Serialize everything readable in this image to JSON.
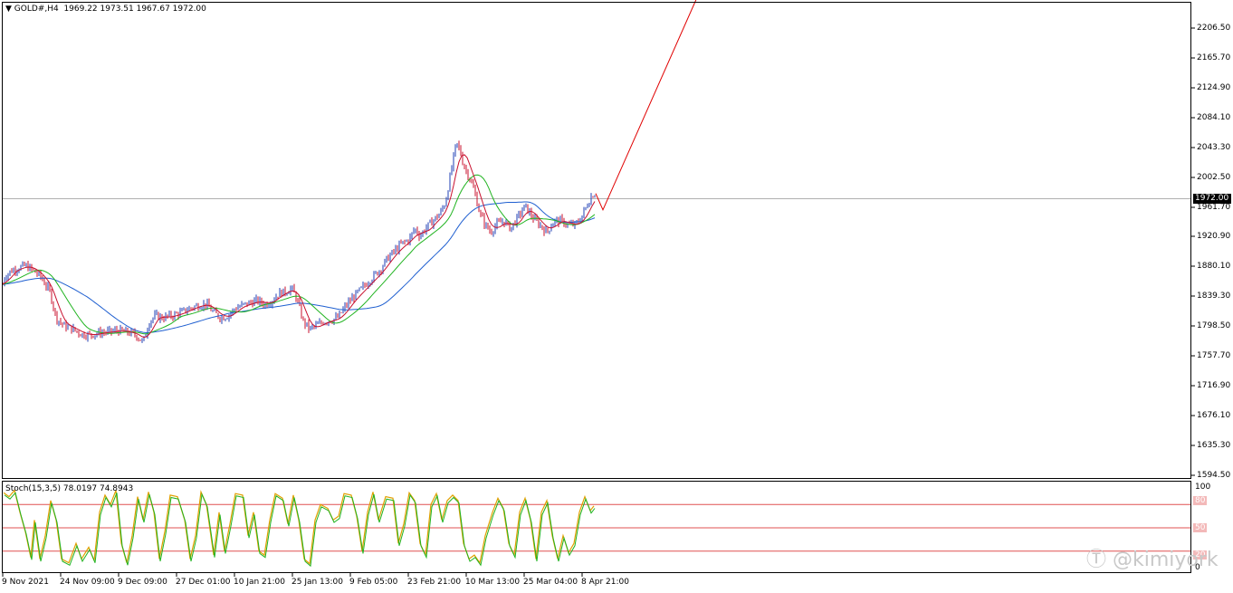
{
  "header": {
    "symbol": "GOLD#,H4",
    "ohlc": "1969.22 1973.51 1967.67 1972.00"
  },
  "current_price": "1972.00",
  "price_axis": [
    "2206.50",
    "2165.70",
    "2124.90",
    "2084.10",
    "2043.30",
    "2002.50",
    "1961.70",
    "1920.90",
    "1880.10",
    "1839.30",
    "1798.50",
    "1757.70",
    "1716.90",
    "1676.10",
    "1635.30",
    "1594.50"
  ],
  "stoch": {
    "title": "Stoch(15,3,5) 78.0197 74.8943",
    "axis": [
      "100",
      "0"
    ],
    "levels": [
      "80",
      "50",
      "20"
    ]
  },
  "time_axis": [
    "9 Nov 2021",
    "24 Nov 09:00",
    "9 Dec 09:00",
    "27 Dec 01:00",
    "10 Jan 21:00",
    "25 Jan 13:00",
    "9 Feb 05:00",
    "23 Feb 21:00",
    "10 Mar 13:00",
    "25 Mar 04:00",
    "8 Apr 21:00"
  ],
  "watermark": "@kimiyork",
  "colors": {
    "bull_candle": "#1f3fb4",
    "bear_candle": "#c8102e",
    "ma_fast": "#c8102e",
    "ma_mid": "#1fb31f",
    "ma_slow": "#1f5fd0",
    "projection": "#e00000",
    "stoch_main": "#1fb31f",
    "stoch_signal": "#e0a000",
    "level_line": "#e05050"
  },
  "chart_data": {
    "type": "candlestick",
    "ylim": [
      1590,
      2228
    ],
    "price_points": [
      [
        0,
        1835
      ],
      [
        5,
        1860
      ],
      [
        12,
        1868
      ],
      [
        20,
        1872
      ],
      [
        28,
        1875
      ],
      [
        35,
        1870
      ],
      [
        45,
        1860
      ],
      [
        55,
        1840
      ],
      [
        62,
        1805
      ],
      [
        70,
        1795
      ],
      [
        80,
        1790
      ],
      [
        90,
        1783
      ],
      [
        100,
        1782
      ],
      [
        110,
        1785
      ],
      [
        120,
        1786
      ],
      [
        130,
        1788
      ],
      [
        140,
        1786
      ],
      [
        150,
        1782
      ],
      [
        158,
        1772
      ],
      [
        165,
        1800
      ],
      [
        172,
        1808
      ],
      [
        180,
        1805
      ],
      [
        190,
        1808
      ],
      [
        200,
        1812
      ],
      [
        210,
        1818
      ],
      [
        220,
        1822
      ],
      [
        228,
        1823
      ],
      [
        236,
        1812
      ],
      [
        244,
        1805
      ],
      [
        252,
        1808
      ],
      [
        260,
        1818
      ],
      [
        268,
        1822
      ],
      [
        276,
        1825
      ],
      [
        284,
        1828
      ],
      [
        292,
        1823
      ],
      [
        300,
        1828
      ],
      [
        308,
        1838
      ],
      [
        316,
        1840
      ],
      [
        322,
        1845
      ],
      [
        328,
        1830
      ],
      [
        335,
        1800
      ],
      [
        342,
        1790
      ],
      [
        350,
        1795
      ],
      [
        358,
        1800
      ],
      [
        366,
        1802
      ],
      [
        374,
        1806
      ],
      [
        380,
        1818
      ],
      [
        388,
        1830
      ],
      [
        396,
        1840
      ],
      [
        404,
        1850
      ],
      [
        412,
        1860
      ],
      [
        420,
        1870
      ],
      [
        428,
        1885
      ],
      [
        436,
        1895
      ],
      [
        444,
        1905
      ],
      [
        452,
        1910
      ],
      [
        458,
        1925
      ],
      [
        464,
        1915
      ],
      [
        470,
        1925
      ],
      [
        478,
        1935
      ],
      [
        486,
        1945
      ],
      [
        492,
        1960
      ],
      [
        498,
        2000
      ],
      [
        504,
        2040
      ],
      [
        508,
        2030
      ],
      [
        512,
        2010
      ],
      [
        518,
        1995
      ],
      [
        524,
        1975
      ],
      [
        530,
        1945
      ],
      [
        536,
        1930
      ],
      [
        542,
        1920
      ],
      [
        548,
        1930
      ],
      [
        556,
        1935
      ],
      [
        564,
        1925
      ],
      [
        572,
        1940
      ],
      [
        580,
        1955
      ],
      [
        588,
        1940
      ],
      [
        596,
        1930
      ],
      [
        604,
        1920
      ],
      [
        612,
        1935
      ],
      [
        620,
        1935
      ],
      [
        628,
        1930
      ],
      [
        636,
        1930
      ],
      [
        642,
        1940
      ],
      [
        648,
        1955
      ],
      [
        654,
        1970
      ],
      [
        658,
        1972
      ]
    ],
    "projection": [
      [
        658,
        1972
      ],
      [
        666,
        1950
      ],
      [
        770,
        2235
      ]
    ],
    "stoch_points": [
      [
        4,
        95
      ],
      [
        10,
        90
      ],
      [
        16,
        98
      ],
      [
        22,
        70
      ],
      [
        28,
        45
      ],
      [
        34,
        12
      ],
      [
        38,
        60
      ],
      [
        44,
        10
      ],
      [
        50,
        40
      ],
      [
        56,
        85
      ],
      [
        62,
        60
      ],
      [
        68,
        10
      ],
      [
        76,
        5
      ],
      [
        84,
        30
      ],
      [
        90,
        10
      ],
      [
        98,
        25
      ],
      [
        104,
        8
      ],
      [
        110,
        70
      ],
      [
        116,
        92
      ],
      [
        122,
        80
      ],
      [
        128,
        98
      ],
      [
        134,
        30
      ],
      [
        140,
        5
      ],
      [
        146,
        40
      ],
      [
        152,
        90
      ],
      [
        158,
        60
      ],
      [
        164,
        96
      ],
      [
        170,
        70
      ],
      [
        176,
        10
      ],
      [
        182,
        45
      ],
      [
        188,
        92
      ],
      [
        196,
        90
      ],
      [
        204,
        60
      ],
      [
        210,
        10
      ],
      [
        216,
        40
      ],
      [
        222,
        96
      ],
      [
        228,
        80
      ],
      [
        236,
        15
      ],
      [
        242,
        70
      ],
      [
        248,
        20
      ],
      [
        254,
        55
      ],
      [
        260,
        94
      ],
      [
        268,
        92
      ],
      [
        274,
        40
      ],
      [
        280,
        70
      ],
      [
        286,
        20
      ],
      [
        292,
        15
      ],
      [
        298,
        60
      ],
      [
        304,
        94
      ],
      [
        312,
        88
      ],
      [
        318,
        55
      ],
      [
        324,
        92
      ],
      [
        330,
        60
      ],
      [
        336,
        10
      ],
      [
        342,
        4
      ],
      [
        348,
        60
      ],
      [
        354,
        80
      ],
      [
        362,
        75
      ],
      [
        368,
        60
      ],
      [
        374,
        65
      ],
      [
        380,
        94
      ],
      [
        388,
        92
      ],
      [
        394,
        65
      ],
      [
        400,
        20
      ],
      [
        406,
        70
      ],
      [
        412,
        96
      ],
      [
        418,
        60
      ],
      [
        426,
        90
      ],
      [
        434,
        88
      ],
      [
        440,
        30
      ],
      [
        446,
        55
      ],
      [
        452,
        95
      ],
      [
        458,
        85
      ],
      [
        464,
        30
      ],
      [
        470,
        15
      ],
      [
        476,
        80
      ],
      [
        482,
        94
      ],
      [
        488,
        60
      ],
      [
        494,
        85
      ],
      [
        500,
        92
      ],
      [
        506,
        85
      ],
      [
        512,
        30
      ],
      [
        518,
        10
      ],
      [
        524,
        15
      ],
      [
        530,
        5
      ],
      [
        536,
        40
      ],
      [
        544,
        70
      ],
      [
        550,
        88
      ],
      [
        556,
        75
      ],
      [
        562,
        30
      ],
      [
        568,
        15
      ],
      [
        574,
        70
      ],
      [
        580,
        88
      ],
      [
        586,
        60
      ],
      [
        592,
        10
      ],
      [
        598,
        70
      ],
      [
        604,
        85
      ],
      [
        610,
        40
      ],
      [
        616,
        10
      ],
      [
        622,
        40
      ],
      [
        628,
        18
      ],
      [
        634,
        30
      ],
      [
        640,
        70
      ],
      [
        646,
        90
      ],
      [
        652,
        72
      ],
      [
        656,
        78
      ]
    ]
  }
}
